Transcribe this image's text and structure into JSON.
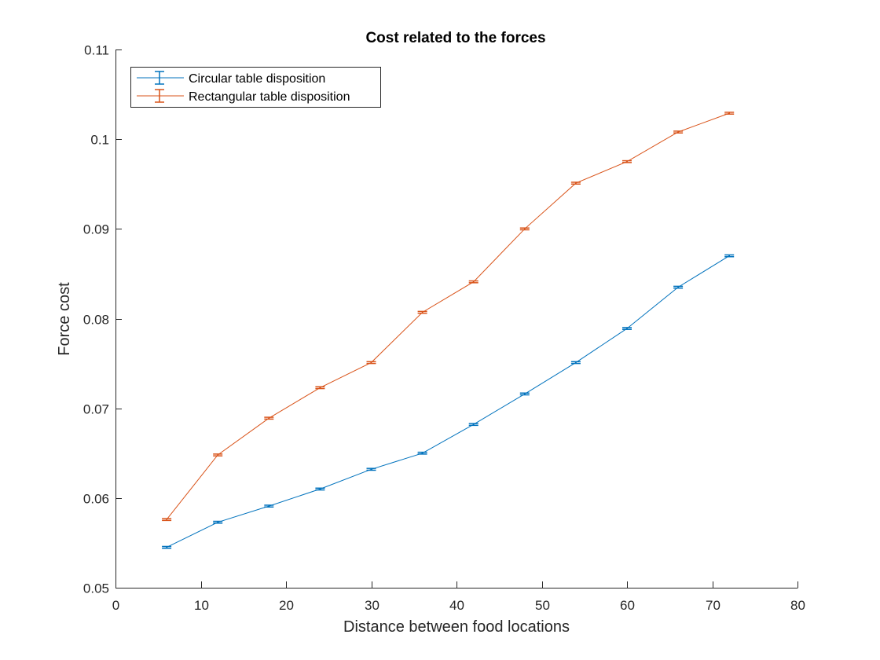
{
  "chart_data": {
    "type": "line",
    "title": "Cost related to the forces",
    "xlabel": "Distance between food locations",
    "ylabel": "Force cost",
    "xlim": [
      0,
      80
    ],
    "ylim": [
      0.05,
      0.11
    ],
    "x_ticks": [
      0,
      10,
      20,
      30,
      40,
      50,
      60,
      70,
      80
    ],
    "y_ticks": [
      0.05,
      0.06,
      0.07,
      0.08,
      0.09,
      0.1,
      0.11
    ],
    "x_tick_labels": [
      "0",
      "10",
      "20",
      "30",
      "40",
      "50",
      "60",
      "70",
      "80"
    ],
    "y_tick_labels": [
      "0.05",
      "0.06",
      "0.07",
      "0.08",
      "0.09",
      "0.1",
      "0.11"
    ],
    "grid": false,
    "legend_position": "top-left",
    "error_bars": true,
    "series": [
      {
        "name": "Circular table disposition",
        "color": "#0072BD",
        "x": [
          6,
          12,
          18,
          24,
          30,
          36,
          42,
          48,
          54,
          60,
          66,
          72
        ],
        "y": [
          0.0545,
          0.0573,
          0.0591,
          0.061,
          0.0632,
          0.065,
          0.0682,
          0.0716,
          0.0751,
          0.0789,
          0.0835,
          0.087
        ],
        "err": [
          0.0001,
          0.0001,
          0.0001,
          0.0001,
          0.0001,
          0.0001,
          0.0001,
          0.0001,
          0.0001,
          0.0001,
          0.0001,
          0.0001
        ]
      },
      {
        "name": "Rectangular table disposition",
        "color": "#D95319",
        "x": [
          6,
          12,
          18,
          24,
          30,
          36,
          42,
          48,
          54,
          60,
          66,
          72
        ],
        "y": [
          0.0576,
          0.0648,
          0.0689,
          0.0723,
          0.0751,
          0.0807,
          0.0841,
          0.09,
          0.0951,
          0.0975,
          0.1008,
          0.1029
        ],
        "err": [
          0.0001,
          0.0001,
          0.0001,
          0.0001,
          0.0001,
          0.0001,
          0.0001,
          0.0001,
          0.0001,
          0.0001,
          0.0001,
          0.0001
        ]
      }
    ]
  }
}
